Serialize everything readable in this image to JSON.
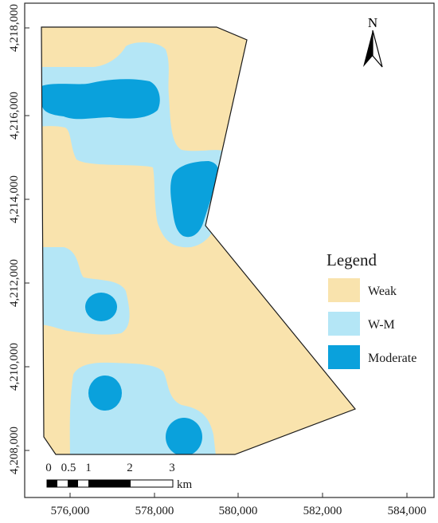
{
  "colors": {
    "weak": "#f9e3ad",
    "wm": "#b4e6f6",
    "moderate": "#0aa1dc",
    "frame": "#2a2a2a"
  },
  "north_arrow": {
    "label": "N",
    "icon": "north-arrow-icon"
  },
  "legend": {
    "title": "Legend",
    "items": [
      {
        "label": "Weak",
        "color": "#f9e3ad"
      },
      {
        "label": "W-M",
        "color": "#b4e6f6"
      },
      {
        "label": "Moderate",
        "color": "#0aa1dc"
      }
    ]
  },
  "x_axis": {
    "ticks": [
      "576,000",
      "578,000",
      "580,000",
      "582,000",
      "584,000"
    ]
  },
  "y_axis": {
    "ticks": [
      "4,218,000",
      "4,216,000",
      "4,214,000",
      "4,212,000",
      "4,210,000",
      "4,208,000"
    ]
  },
  "scale_bar": {
    "labels": [
      "0",
      "0.5",
      "1",
      "2",
      "3"
    ],
    "unit": "km"
  }
}
